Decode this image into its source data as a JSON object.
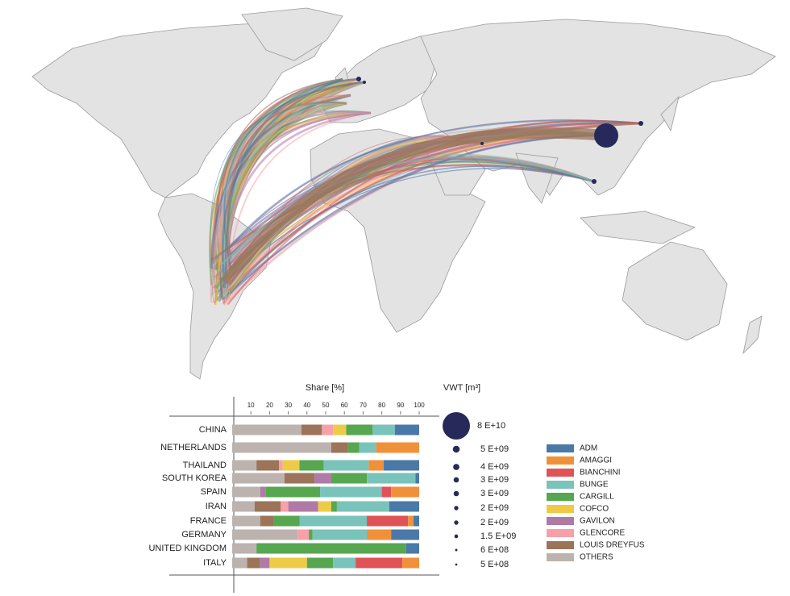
{
  "chart_data": [
    {
      "type": "bar",
      "stacked": true,
      "orientation": "horizontal",
      "xlabel": "Share [%]",
      "categories": [
        "CHINA",
        "NETHERLANDS",
        "THAILAND",
        "SOUTH KOREA",
        "SPAIN",
        "IRAN",
        "FRANCE",
        "GERMANY",
        "UNITED KINGDOM",
        "ITALY"
      ],
      "series": [
        {
          "name": "ADM",
          "color": "#4a79a8",
          "values": [
            13,
            0,
            19,
            2,
            0,
            16,
            3,
            15,
            7,
            0
          ]
        },
        {
          "name": "AMAGGI",
          "color": "#f0913a",
          "values": [
            0,
            23,
            8,
            0,
            15,
            0,
            3,
            13,
            0,
            9
          ]
        },
        {
          "name": "BIANCHINI",
          "color": "#df5356",
          "values": [
            0,
            0,
            0,
            0,
            5,
            0,
            22,
            0,
            0,
            25
          ]
        },
        {
          "name": "BUNGE",
          "color": "#79c3bb",
          "values": [
            12,
            9,
            24,
            26,
            33,
            28,
            36,
            29,
            0,
            12
          ]
        },
        {
          "name": "CARGILL",
          "color": "#56a74f",
          "values": [
            14,
            6,
            13,
            19,
            29,
            3,
            14,
            2,
            80,
            14
          ]
        },
        {
          "name": "COFCO",
          "color": "#eecb47",
          "values": [
            7,
            0,
            9,
            0,
            0,
            7,
            0,
            0,
            0,
            20
          ]
        },
        {
          "name": "GAVILON",
          "color": "#b07aa6",
          "values": [
            0,
            0,
            0,
            9,
            3,
            16,
            0,
            0,
            0,
            5
          ]
        },
        {
          "name": "GLENCORE",
          "color": "#f7a0a8",
          "values": [
            6,
            0,
            2,
            0,
            0,
            4,
            0,
            6,
            0,
            0
          ]
        },
        {
          "name": "LOUIS DREYFUS",
          "color": "#9b7459",
          "values": [
            11,
            9,
            12,
            16,
            0,
            14,
            7,
            0,
            0,
            7
          ]
        },
        {
          "name": "OTHERS",
          "color": "#bcb3ae",
          "values": [
            37,
            53,
            13,
            28,
            15,
            12,
            15,
            35,
            13,
            8
          ]
        }
      ],
      "xlim": [
        0,
        100
      ],
      "xticks": [
        10,
        20,
        30,
        40,
        50,
        60,
        70,
        80,
        90,
        100
      ]
    },
    {
      "type": "bubble",
      "title": "VWT [m³]",
      "color": "#26295a",
      "values": [
        80000000000,
        5000000000,
        4000000000,
        3000000000,
        3000000000,
        2000000000,
        2000000000,
        1500000000,
        600000000,
        500000000
      ],
      "value_labels": [
        "8 E+10",
        "5 E+09",
        "4 E+09",
        "3 E+09",
        "3 E+09",
        "2 E+09",
        "2 E+09",
        "1.5 E+09",
        "6 E+08",
        "5 E+08"
      ]
    }
  ]
}
